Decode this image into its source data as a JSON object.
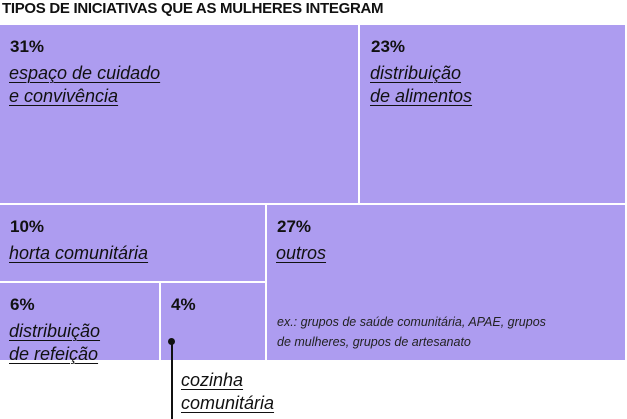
{
  "chart_data": {
    "type": "treemap",
    "title": "TIPOS DE INICIATIVAS QUE AS MULHERES INTEGRAM",
    "categories": [
      "espaço de cuidado\ne convivência",
      "distribuição\nde alimentos",
      "horta comunitária",
      "outros",
      "distribuição\nde refeição",
      "cozinha\ncomunitária"
    ],
    "values": [
      31,
      23,
      10,
      27,
      6,
      4
    ],
    "value_labels": [
      "31%",
      "23%",
      "10%",
      "27%",
      "6%",
      "4%"
    ],
    "color": "#ad9cf0",
    "note": "ex.: grupos de saúde comunitária, APAE, grupos\nde mulheres, grupos de artesanato"
  }
}
